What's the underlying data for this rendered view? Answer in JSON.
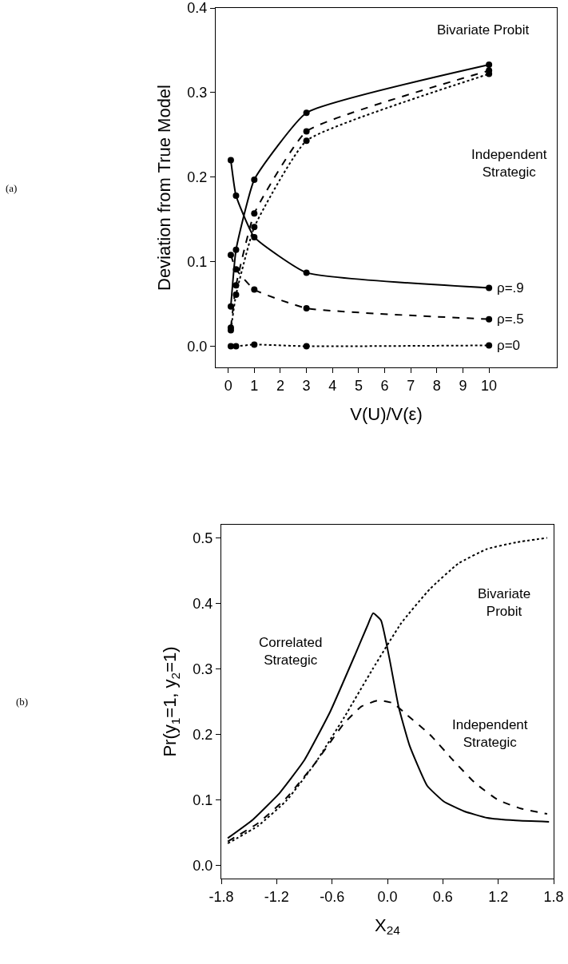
{
  "chart_data": [
    {
      "type": "line",
      "xlabel": "V(U)/V(ε)",
      "ylabel": "Deviation from True Model",
      "marker": "circle",
      "grid": false,
      "legend": false,
      "xlim": [
        -0.48,
        12.6
      ],
      "xticks": [
        0,
        1,
        2,
        3,
        4,
        5,
        6,
        7,
        8,
        9,
        10
      ],
      "ylim": [
        -0.025,
        0.4
      ],
      "yticks": [
        {
          "value": 0,
          "label": "0.0"
        },
        0.1,
        0.2,
        0.3,
        0.4
      ],
      "series": [
        {
          "color": "#000000",
          "line_style": "solid",
          "x": [
            0.1,
            0.3,
            1,
            3,
            10
          ],
          "values": [
            0.047,
            0.114,
            0.197,
            0.276,
            0.333
          ]
        },
        {
          "color": "#000000",
          "line_style": "dashed",
          "x": [
            0.1,
            0.3,
            1,
            3,
            10
          ],
          "values": [
            0.022,
            0.072,
            0.157,
            0.254,
            0.326
          ]
        },
        {
          "color": "#000000",
          "line_style": "dotted",
          "x": [
            0.1,
            0.3,
            1,
            3,
            10
          ],
          "values": [
            0.019,
            0.061,
            0.141,
            0.243,
            0.322
          ]
        },
        {
          "name": "ρ=.9",
          "color": "#000000",
          "line_style": "solid",
          "x": [
            0.1,
            0.3,
            1,
            3,
            10
          ],
          "values": [
            0.22,
            0.178,
            0.129,
            0.087,
            0.069
          ]
        },
        {
          "name": "ρ=.5",
          "color": "#000000",
          "line_style": "dashed",
          "x": [
            0.1,
            0.3,
            1,
            3,
            10
          ],
          "values": [
            0.108,
            0.091,
            0.067,
            0.045,
            0.032
          ]
        },
        {
          "name": "ρ=0",
          "color": "#000000",
          "line_style": "dotted",
          "x": [
            0.1,
            0.3,
            1,
            3,
            10
          ],
          "values": [
            0,
            0,
            0.002,
            0,
            0.001
          ]
        }
      ],
      "annotations": [
        "Bivariate Probit",
        "Independent Strategic",
        "(a)"
      ]
    },
    {
      "type": "line",
      "xlabel": "X$_{24}$",
      "ylabel": "Pr(y$_{1}$=1, y$_{2}$=1)",
      "marker": "none",
      "grid": false,
      "legend": false,
      "xlim": [
        -1.8,
        1.8
      ],
      "xticks": [
        -1.8,
        -1.2,
        -0.6,
        {
          "value": 0,
          "label": "0.0"
        },
        0.6,
        1.2,
        1.8
      ],
      "ylim": [
        -0.0196,
        0.52
      ],
      "yticks": [
        {
          "value": 0,
          "label": "0.0"
        },
        0.1,
        0.2,
        0.3,
        0.4,
        0.5
      ],
      "series": [
        {
          "name": "Correlated Strategic",
          "color": "#000000",
          "line_style": "solid",
          "x": [
            -1.73,
            -1.46,
            -1.18,
            -0.9,
            -0.62,
            -0.35,
            -0.22,
            -0.155,
            -0.07,
            0.02,
            0.12,
            0.24,
            0.43,
            0.61,
            0.83,
            1.08,
            1.39,
            1.75
          ],
          "values": [
            0.042,
            0.07,
            0.109,
            0.161,
            0.235,
            0.322,
            0.365,
            0.385,
            0.374,
            0.317,
            0.243,
            0.183,
            0.122,
            0.098,
            0.083,
            0.073,
            0.069,
            0.067
          ]
        },
        {
          "name": "Independent Strategic",
          "color": "#000000",
          "line_style": "dashed",
          "x": [
            -1.73,
            -1.4,
            -1.09,
            -0.78,
            -0.47,
            -0.28,
            -0.1,
            0.06,
            0.21,
            0.46,
            0.71,
            0.95,
            1.2,
            1.45,
            1.73
          ],
          "values": [
            0.037,
            0.065,
            0.104,
            0.157,
            0.217,
            0.243,
            0.252,
            0.248,
            0.23,
            0.2,
            0.161,
            0.126,
            0.1,
            0.087,
            0.079
          ]
        },
        {
          "name": "Bivariate Probit",
          "color": "#000000",
          "line_style": "dotted",
          "x": [
            -1.73,
            -1.4,
            -1.09,
            -0.78,
            -0.47,
            -0.16,
            0.15,
            0.46,
            0.77,
            1.08,
            1.39,
            1.73
          ],
          "values": [
            0.034,
            0.061,
            0.1,
            0.157,
            0.226,
            0.3,
            0.37,
            0.422,
            0.461,
            0.483,
            0.493,
            0.5
          ]
        }
      ],
      "annotations": [
        "(b)"
      ]
    }
  ]
}
